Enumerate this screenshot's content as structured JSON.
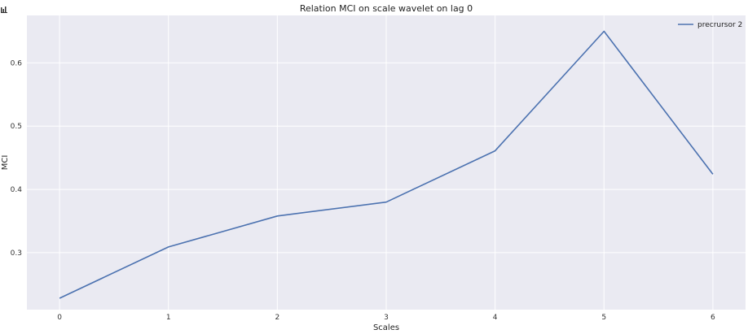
{
  "chart_data": {
    "type": "line",
    "title": "Relation MCI on scale wavelet on lag 0",
    "xlabel": "Scales",
    "ylabel": "MCI",
    "x": [
      0,
      1,
      2,
      3,
      4,
      5,
      6
    ],
    "xticks": [
      "0",
      "1",
      "2",
      "3",
      "4",
      "5",
      "6"
    ],
    "yticks": [
      0.3,
      0.4,
      0.5,
      0.6
    ],
    "ytick_labels": [
      "0.3",
      "0.4",
      "0.5",
      "0.6"
    ],
    "xlim": [
      -0.3,
      6.3
    ],
    "ylim": [
      0.21,
      0.675
    ],
    "grid": true,
    "legend_position": "top-right",
    "series": [
      {
        "name": "precrursor 2",
        "color": "#4C72B0",
        "values": [
          0.228,
          0.309,
          0.358,
          0.38,
          0.461,
          0.65,
          0.424
        ]
      }
    ],
    "colors": {
      "plot_background": "#EAEAF2",
      "grid": "#FFFFFF"
    }
  },
  "icons": {
    "corner": "bar-chart-icon"
  }
}
